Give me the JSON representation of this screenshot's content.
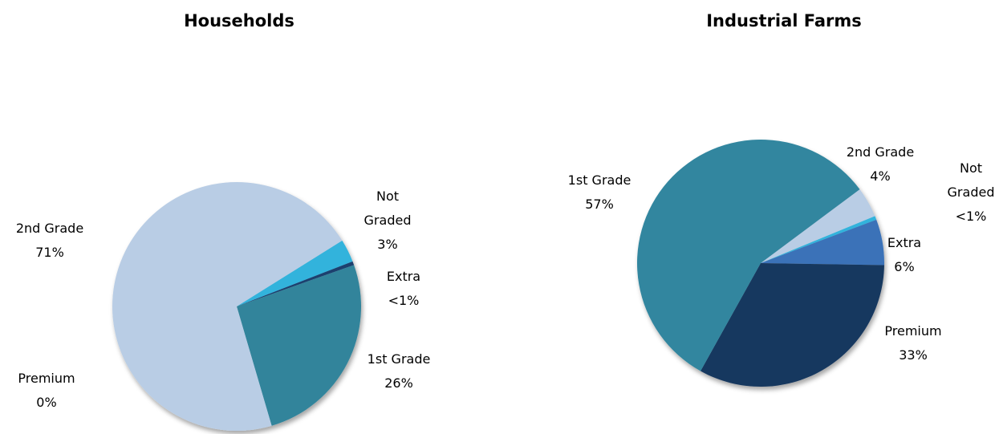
{
  "chart_data": [
    {
      "type": "pie",
      "title": "Households",
      "categories": [
        "Not Graded",
        "Extra",
        "1st Grade",
        "Premium",
        "2nd Grade"
      ],
      "values": [
        3,
        0.5,
        26,
        0,
        71
      ],
      "value_labels": [
        "3%",
        "<1%",
        "26%",
        "0%",
        "71%"
      ],
      "colors": [
        "#31b3dc",
        "#1c3f6e",
        "#31849b",
        "#17375e",
        "#b9cde5"
      ]
    },
    {
      "type": "pie",
      "title": "Industrial Farms",
      "categories": [
        "2nd Grade",
        "Not Graded",
        "Extra",
        "Premium",
        "1st Grade"
      ],
      "values": [
        4,
        0.5,
        6,
        33,
        57
      ],
      "value_labels": [
        "4%",
        "<1%",
        "6%",
        "33%",
        "57%"
      ],
      "colors": [
        "#b9cde5",
        "#31b3dc",
        "#3a72b8",
        "#17375e",
        "#31869f"
      ]
    }
  ]
}
